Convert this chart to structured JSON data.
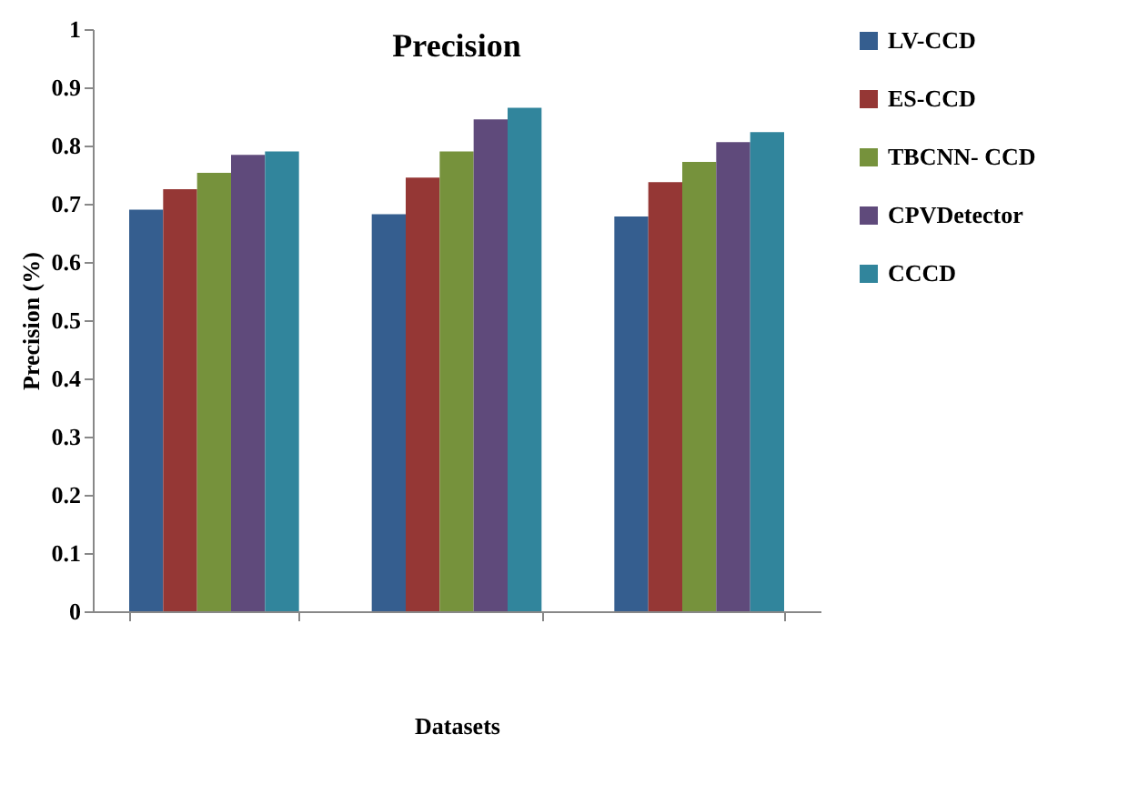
{
  "chart_data": {
    "type": "bar",
    "title": "Precision",
    "xlabel": "Datasets",
    "ylabel": "Precision (%)",
    "categories": [
      null,
      null,
      null
    ],
    "series": [
      {
        "name": "LV-CCD",
        "color": "#355e8f",
        "values": [
          0.69,
          0.682,
          0.678
        ]
      },
      {
        "name": "ES-CCD",
        "color": "#953735",
        "values": [
          0.725,
          0.745,
          0.737
        ]
      },
      {
        "name": "TBCNN- CCD",
        "color": "#76923c",
        "values": [
          0.753,
          0.79,
          0.772
        ]
      },
      {
        "name": "CPVDetector",
        "color": "#5f4a7b",
        "values": [
          0.784,
          0.845,
          0.806
        ]
      },
      {
        "name": "CCCD",
        "color": "#31859c",
        "values": [
          0.79,
          0.865,
          0.823
        ]
      }
    ],
    "ylim": [
      0,
      1
    ],
    "yticks": [
      0,
      0.1,
      0.2,
      0.3,
      0.4,
      0.5,
      0.6,
      0.7,
      0.8,
      0.9,
      1
    ],
    "grid": false,
    "legend": "right"
  }
}
